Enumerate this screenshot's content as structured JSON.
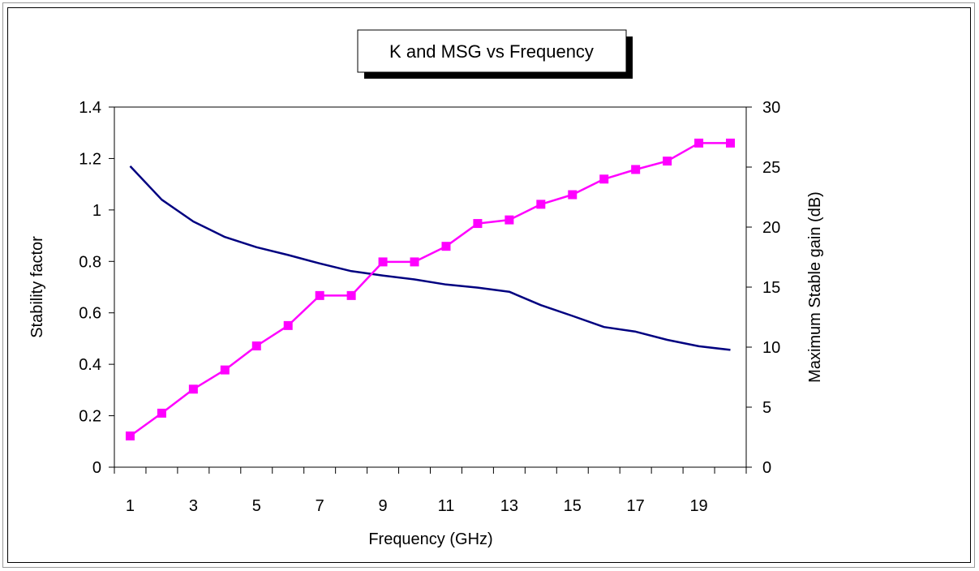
{
  "chart_data": {
    "type": "line",
    "title": "K and MSG vs Frequency",
    "xlabel": "Frequency (GHz)",
    "ylabel": "Stability factor",
    "y2label": "Maximum Stable gain (dB)",
    "x": [
      1,
      2,
      3,
      4,
      5,
      6,
      7,
      8,
      9,
      10,
      11,
      12,
      13,
      14,
      15,
      16,
      17,
      18,
      19,
      20
    ],
    "x_tick_labels": [
      "1",
      "3",
      "5",
      "7",
      "9",
      "11",
      "13",
      "15",
      "17",
      "19"
    ],
    "ylim": [
      0,
      1.4
    ],
    "y_tick_labels": [
      "0",
      "0.2",
      "0.4",
      "0.6",
      "0.8",
      "1",
      "1.2",
      "1.4"
    ],
    "y2lim": [
      0,
      30
    ],
    "y2_tick_labels": [
      "0",
      "5",
      "10",
      "15",
      "20",
      "25",
      "30"
    ],
    "grid": false,
    "legend": "none",
    "series": [
      {
        "axis": "left",
        "color": "#000080",
        "marker": "none",
        "values": [
          1.17,
          1.04,
          0.955,
          0.895,
          0.855,
          0.825,
          0.792,
          0.762,
          0.745,
          0.73,
          0.71,
          0.698,
          0.682,
          0.63,
          0.588,
          0.545,
          0.527,
          0.495,
          0.47,
          0.456
        ]
      },
      {
        "axis": "right",
        "color": "#ff00ff",
        "marker": "square",
        "values": [
          2.6,
          4.5,
          6.5,
          8.1,
          10.1,
          11.8,
          14.3,
          14.3,
          17.1,
          17.1,
          18.4,
          20.3,
          20.6,
          21.9,
          22.7,
          24.0,
          24.8,
          25.5,
          27.0,
          27.0
        ]
      }
    ]
  }
}
